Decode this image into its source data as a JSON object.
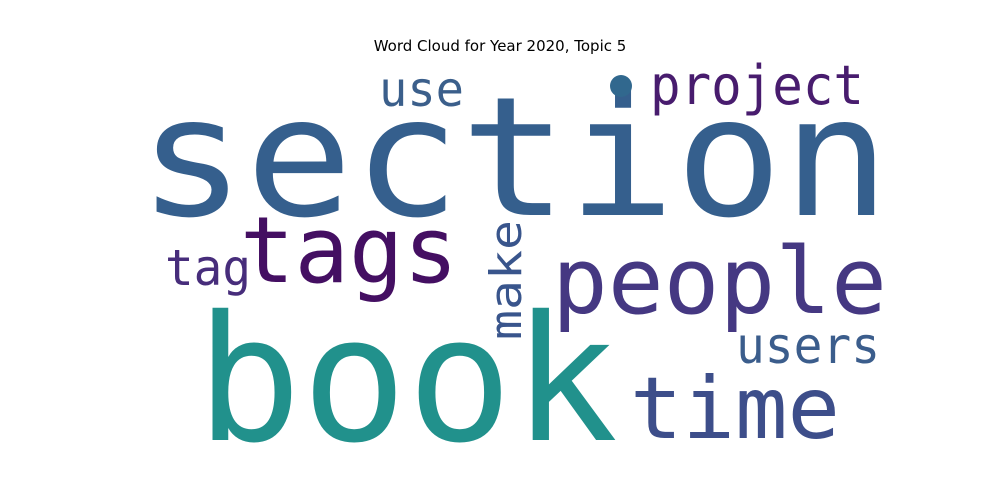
{
  "title": "Word Cloud for Year 2020, Topic 5",
  "words": [
    {
      "key": "section",
      "text": "section",
      "color": "#355f8d"
    },
    {
      "key": "book",
      "text": "book",
      "color": "#21918c"
    },
    {
      "key": "tags",
      "text": "tags",
      "color": "#440f62"
    },
    {
      "key": "people",
      "text": "people",
      "color": "#453882"
    },
    {
      "key": "time",
      "text": "time",
      "color": "#3d4e8a"
    },
    {
      "key": "project",
      "text": "project",
      "color": "#481c6e"
    },
    {
      "key": "users",
      "text": "users",
      "color": "#3b5d8c"
    },
    {
      "key": "use",
      "text": "use",
      "color": "#3b5f8b"
    },
    {
      "key": "tag",
      "text": "tag",
      "color": "#472d7b"
    },
    {
      "key": "make",
      "text": "make",
      "color": "#39558c"
    },
    {
      "key": "dot",
      "text": "•",
      "color": "#31688e"
    }
  ]
}
